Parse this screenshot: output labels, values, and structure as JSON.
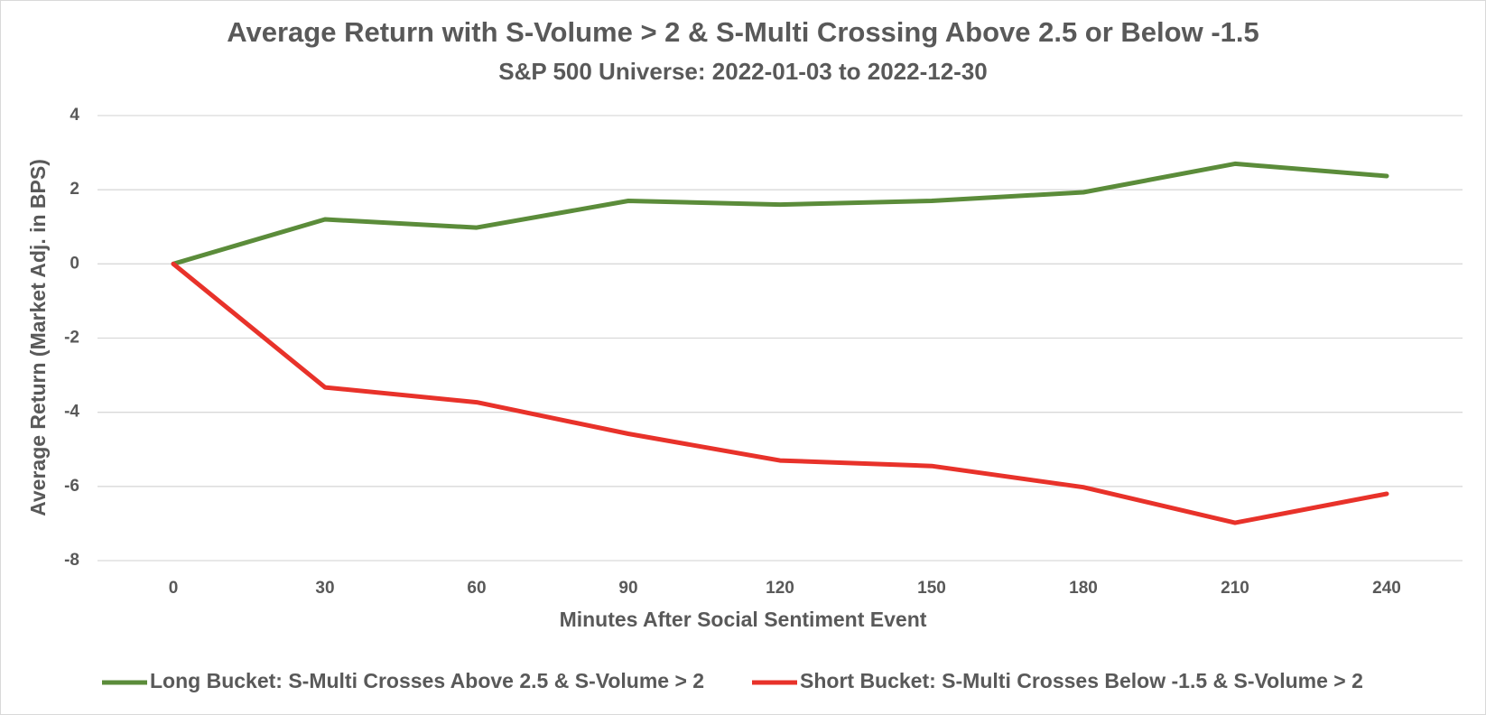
{
  "chart_data": {
    "type": "line",
    "title": "Average Return with S-Volume > 2 & S-Multi Crossing Above 2.5 or Below -1.5",
    "subtitle": "S&P 500 Universe: 2022-01-03 to 2022-12-30",
    "x_label": "Minutes After Social Sentiment Event",
    "y_label": "Average Return (Market Adj. in BPS)",
    "categories": [
      0,
      30,
      60,
      90,
      120,
      150,
      180,
      210,
      240
    ],
    "series": [
      {
        "name": "Long Bucket: S-Multi Crosses Above 2.5 & S-Volume > 2",
        "color": "#5b8c3a",
        "values": [
          0,
          1.2,
          0.98,
          1.7,
          1.6,
          1.7,
          1.93,
          2.7,
          2.37
        ]
      },
      {
        "name": "Short Bucket: S-Multi Crosses Below -1.5 & S-Volume > 2",
        "color": "#e8322a",
        "values": [
          0,
          -3.33,
          -3.73,
          -4.58,
          -5.3,
          -5.45,
          -6.02,
          -6.98,
          -6.2
        ]
      }
    ],
    "ylim": [
      -8,
      4
    ],
    "yticks": [
      4,
      2,
      0,
      -2,
      -4,
      -6,
      -8
    ],
    "grid": true,
    "legend": "bottom"
  }
}
